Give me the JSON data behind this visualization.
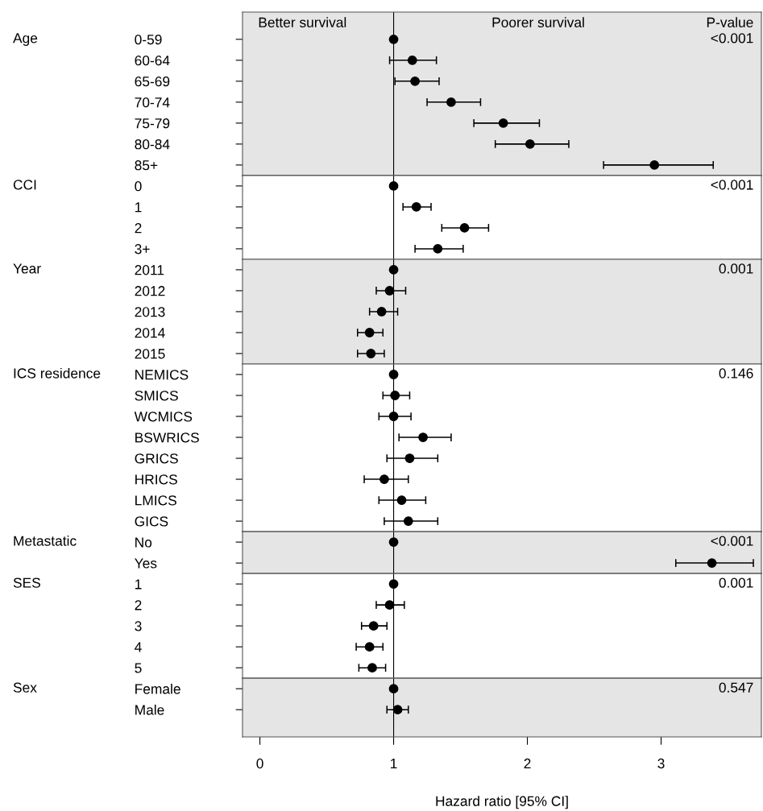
{
  "chart_data": [
    {
      "type": "scatter",
      "orientation": "horizontal",
      "ylabel": "Age",
      "categories": [
        "0-59",
        "60-64",
        "65-69",
        "70-74",
        "75-79",
        "80-84",
        "85+"
      ],
      "values": [
        1,
        1.14,
        1.16,
        1.43,
        1.82,
        2.02,
        2.95
      ],
      "errors": [
        null,
        [
          0.97,
          1.32
        ],
        [
          1.01,
          1.34
        ],
        [
          1.25,
          1.65
        ],
        [
          1.6,
          2.09
        ],
        [
          1.76,
          2.31
        ],
        [
          2.57,
          3.39
        ]
      ],
      "color": "#000000",
      "marker": "circle",
      "xlim": [
        -0.13,
        3.75
      ],
      "xticks": [
        0,
        1,
        2,
        3
      ],
      "tick_labels": "y",
      "bands": [
        {
          "axis": "x",
          "from": -0.13,
          "to": 3.75,
          "color": "#e5e5e5"
        }
      ],
      "ref_lines": [
        {
          "axis": "x",
          "value": 1,
          "color": "#000000"
        }
      ],
      "annotations": [
        "Better survival",
        "Poorer survival",
        "P-value",
        "<0.001"
      ]
    },
    {
      "type": "scatter",
      "orientation": "horizontal",
      "ylabel": "CCI",
      "categories": [
        "0",
        "1",
        "2",
        "3+"
      ],
      "values": [
        1,
        1.17,
        1.53,
        1.33
      ],
      "errors": [
        null,
        [
          1.07,
          1.28
        ],
        [
          1.36,
          1.71
        ],
        [
          1.16,
          1.52
        ]
      ],
      "color": "#000000",
      "marker": "circle",
      "xlim": [
        -0.13,
        3.75
      ],
      "xticks": [
        0,
        1,
        2,
        3
      ],
      "tick_labels": "y",
      "ref_lines": [
        {
          "axis": "x",
          "value": 1,
          "color": "#000000"
        }
      ],
      "annotations": [
        "<0.001"
      ]
    },
    {
      "type": "scatter",
      "orientation": "horizontal",
      "ylabel": "Year",
      "categories": [
        "2011",
        "2012",
        "2013",
        "2014",
        "2015"
      ],
      "values": [
        1,
        0.97,
        0.91,
        0.82,
        0.83
      ],
      "errors": [
        null,
        [
          0.87,
          1.09
        ],
        [
          0.82,
          1.03
        ],
        [
          0.73,
          0.92
        ],
        [
          0.73,
          0.93
        ]
      ],
      "color": "#000000",
      "marker": "circle",
      "xlim": [
        -0.13,
        3.75
      ],
      "xticks": [
        0,
        1,
        2,
        3
      ],
      "tick_labels": "y",
      "bands": [
        {
          "axis": "x",
          "from": -0.13,
          "to": 3.75,
          "color": "#e5e5e5"
        }
      ],
      "ref_lines": [
        {
          "axis": "x",
          "value": 1,
          "color": "#000000"
        }
      ],
      "annotations": [
        "0.001"
      ]
    },
    {
      "type": "scatter",
      "orientation": "horizontal",
      "ylabel": "ICS residence",
      "categories": [
        "NEMICS",
        "SMICS",
        "WCMICS",
        "BSWRICS",
        "GRICS",
        "HRICS",
        "LMICS",
        "GICS"
      ],
      "values": [
        1,
        1.01,
        1.0,
        1.22,
        1.12,
        0.93,
        1.06,
        1.11
      ],
      "errors": [
        null,
        [
          0.92,
          1.12
        ],
        [
          0.89,
          1.13
        ],
        [
          1.04,
          1.43
        ],
        [
          0.95,
          1.33
        ],
        [
          0.78,
          1.11
        ],
        [
          0.89,
          1.24
        ],
        [
          0.93,
          1.33
        ]
      ],
      "color": "#000000",
      "marker": "circle",
      "xlim": [
        -0.13,
        3.75
      ],
      "xticks": [
        0,
        1,
        2,
        3
      ],
      "tick_labels": "y",
      "ref_lines": [
        {
          "axis": "x",
          "value": 1,
          "color": "#000000"
        }
      ],
      "annotations": [
        "0.146"
      ]
    },
    {
      "type": "scatter",
      "orientation": "horizontal",
      "ylabel": "Metastatic",
      "categories": [
        "No",
        "Yes"
      ],
      "values": [
        1,
        3.38
      ],
      "errors": [
        null,
        [
          3.11,
          3.69
        ]
      ],
      "color": "#000000",
      "marker": "circle",
      "xlim": [
        -0.13,
        3.75
      ],
      "xticks": [
        0,
        1,
        2,
        3
      ],
      "tick_labels": "y",
      "bands": [
        {
          "axis": "x",
          "from": -0.13,
          "to": 3.75,
          "color": "#e5e5e5"
        }
      ],
      "ref_lines": [
        {
          "axis": "x",
          "value": 1,
          "color": "#000000"
        }
      ],
      "annotations": [
        "<0.001"
      ]
    },
    {
      "type": "scatter",
      "orientation": "horizontal",
      "ylabel": "SES",
      "categories": [
        "1",
        "2",
        "3",
        "4",
        "5"
      ],
      "values": [
        1,
        0.97,
        0.85,
        0.82,
        0.84
      ],
      "errors": [
        null,
        [
          0.87,
          1.08
        ],
        [
          0.76,
          0.95
        ],
        [
          0.72,
          0.92
        ],
        [
          0.74,
          0.94
        ]
      ],
      "color": "#000000",
      "marker": "circle",
      "xlim": [
        -0.13,
        3.75
      ],
      "xticks": [
        0,
        1,
        2,
        3
      ],
      "tick_labels": "y",
      "ref_lines": [
        {
          "axis": "x",
          "value": 1,
          "color": "#000000"
        }
      ],
      "annotations": [
        "0.001"
      ]
    },
    {
      "type": "scatter",
      "orientation": "horizontal",
      "ylabel": "Sex",
      "categories": [
        "Female",
        "Male"
      ],
      "values": [
        1,
        1.03
      ],
      "errors": [
        null,
        [
          0.95,
          1.11
        ]
      ],
      "color": "#000000",
      "marker": "circle",
      "xlim": [
        -0.13,
        3.75
      ],
      "xticks": [
        0,
        1,
        2,
        3
      ],
      "xlabel": "Hazard ratio [95% CI]",
      "bands": [
        {
          "axis": "x",
          "from": -0.13,
          "to": 3.75,
          "color": "#e5e5e5"
        }
      ],
      "ref_lines": [
        {
          "axis": "x",
          "value": 1,
          "color": "#000000"
        }
      ],
      "annotations": [
        "0.547"
      ]
    }
  ]
}
